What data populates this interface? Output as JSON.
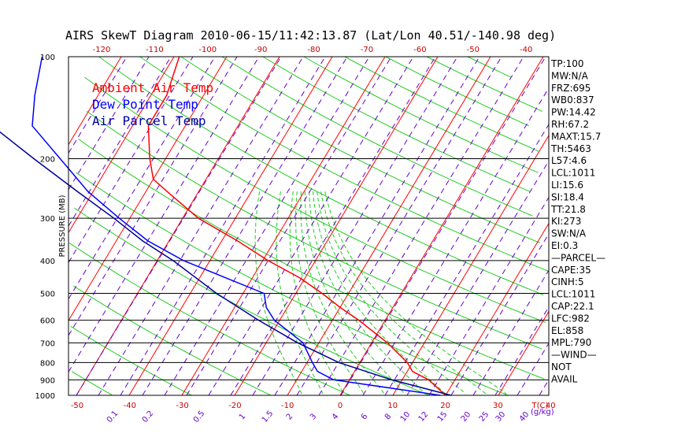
{
  "chart_data": {
    "type": "line",
    "title": "AIRS SkewT Diagram 2010-06-15/11:42:13.87 (Lat/Lon 40.51/-140.98 deg)",
    "ylabel": "PRESSURE (MB)",
    "y_scale": "log",
    "y_ticks": [
      "100",
      "200",
      "300",
      "400",
      "500",
      "600",
      "700",
      "800",
      "900",
      "1000"
    ],
    "x_ticks_bottom": [
      "-50",
      "-40",
      "-30",
      "-20",
      "-10",
      "0",
      "10",
      "20",
      "30",
      "40"
    ],
    "x_unit_bottom": "T(C)",
    "x_ticks_top": [
      "-120",
      "-110",
      "-100",
      "-90",
      "-80",
      "-70",
      "-60",
      "-50",
      "-40"
    ],
    "mixing_ratio_labels": [
      "0.1",
      "0.2",
      "0.5",
      "1",
      "1.5",
      "2",
      "3",
      "4",
      "6",
      "8",
      "10",
      "12",
      "15",
      "20",
      "25",
      "30",
      "40"
    ],
    "mixing_ratio_unit": "(g/kg)",
    "legend": [
      {
        "label": "Ambient Air Temp",
        "color": "#ff0000"
      },
      {
        "label": "Dew Point Temp",
        "color": "#0000ff"
      },
      {
        "label": "Air Parcel Temp",
        "color": "#0000aa"
      }
    ],
    "series": [
      {
        "name": "Ambient Air Temp",
        "color": "#ff0000",
        "points": [
          [
            100,
            -69
          ],
          [
            130,
            -67
          ],
          [
            160,
            -67
          ],
          [
            200,
            -63
          ],
          [
            230,
            -60
          ],
          [
            250,
            -56
          ],
          [
            300,
            -47
          ],
          [
            350,
            -37
          ],
          [
            400,
            -29
          ],
          [
            450,
            -21
          ],
          [
            500,
            -15
          ],
          [
            550,
            -10
          ],
          [
            600,
            -5
          ],
          [
            700,
            3
          ],
          [
            800,
            9
          ],
          [
            850,
            11
          ],
          [
            900,
            15
          ],
          [
            1000,
            20
          ]
        ]
      },
      {
        "name": "Dew Point Temp",
        "color": "#0000ff",
        "points": [
          [
            100,
            -95
          ],
          [
            130,
            -92
          ],
          [
            160,
            -89
          ],
          [
            200,
            -80
          ],
          [
            250,
            -71
          ],
          [
            300,
            -62
          ],
          [
            350,
            -54
          ],
          [
            400,
            -45
          ],
          [
            450,
            -35
          ],
          [
            500,
            -26
          ],
          [
            550,
            -24
          ],
          [
            600,
            -21
          ],
          [
            700,
            -13
          ],
          [
            800,
            -9
          ],
          [
            850,
            -7
          ],
          [
            900,
            -3
          ],
          [
            1000,
            19
          ]
        ]
      },
      {
        "name": "Air Parcel Temp",
        "color": "#000099",
        "points": [
          [
            100,
            -121
          ],
          [
            150,
            -100
          ],
          [
            200,
            -85
          ],
          [
            250,
            -73
          ],
          [
            300,
            -63
          ],
          [
            350,
            -55
          ],
          [
            400,
            -47
          ],
          [
            500,
            -35
          ],
          [
            600,
            -24
          ],
          [
            700,
            -14
          ],
          [
            800,
            -4
          ],
          [
            900,
            8
          ],
          [
            1000,
            21
          ]
        ]
      }
    ],
    "stats": [
      "TP:100",
      "MW:N/A",
      "FRZ:695",
      "WB0:837",
      "PW:14.42",
      "RH:67.2",
      "MAXT:15.7",
      "TH:5463",
      "L57:4.6",
      "LCL:1011",
      "LI:15.6",
      "SI:18.4",
      "TT:21.8",
      "KI:273",
      "SW:N/A",
      "EI:0.3",
      "—PARCEL—",
      "CAPE:35",
      "CINH:5",
      "LCL:1011",
      "CAP:22.1",
      "LFC:982",
      "EL:858",
      "MPL:790",
      "—WIND—",
      "NOT",
      "AVAIL"
    ],
    "grid": true
  }
}
